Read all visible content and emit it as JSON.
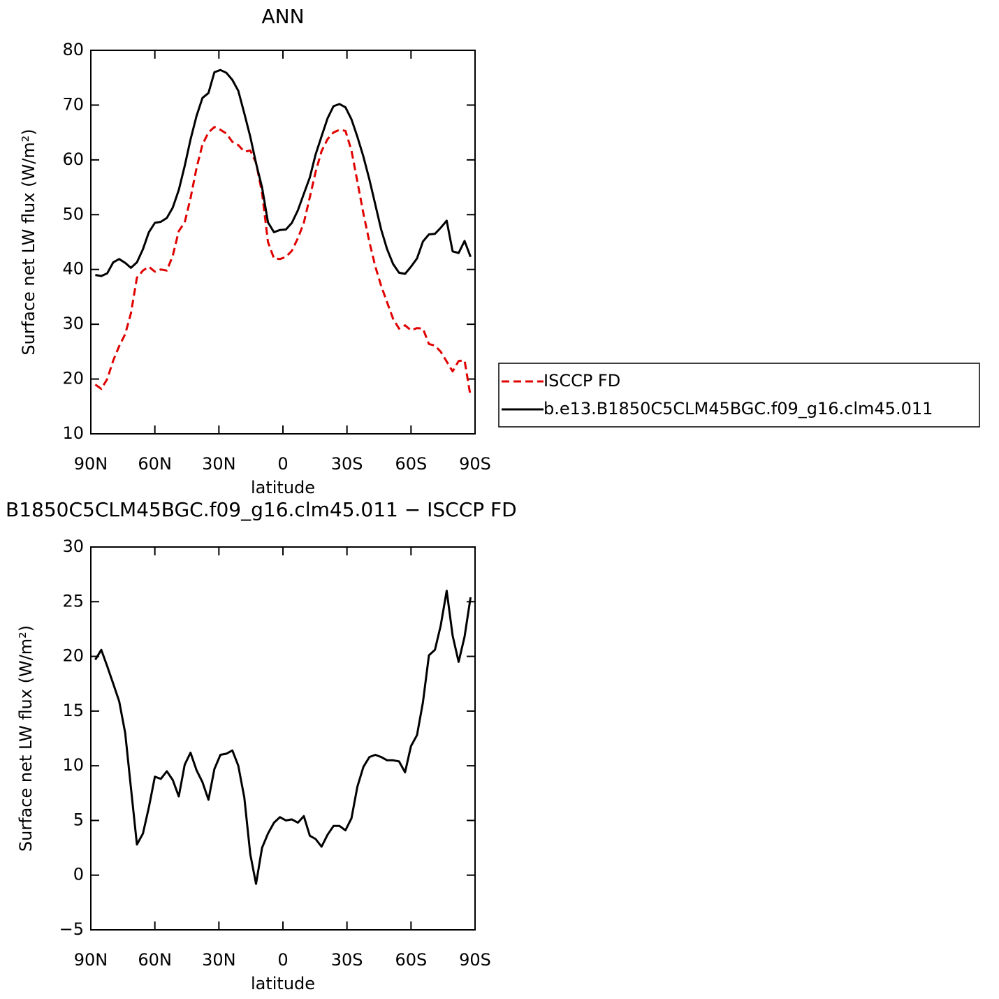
{
  "chart_data": [
    {
      "type": "line",
      "title": "ANN",
      "x_label": "latitude",
      "y_label": "Surface net LW flux (W/m²)",
      "x": [
        87.9,
        85.1,
        82.3,
        79.5,
        76.7,
        73.9,
        71.2,
        68.4,
        65.6,
        62.8,
        60.0,
        57.2,
        54.4,
        51.6,
        48.8,
        46.0,
        43.3,
        40.5,
        37.7,
        34.9,
        32.1,
        29.3,
        26.5,
        23.7,
        20.9,
        18.1,
        15.3,
        12.6,
        9.8,
        7.0,
        4.2,
        1.4,
        -1.4,
        -4.2,
        -7.0,
        -9.8,
        -12.6,
        -15.3,
        -18.1,
        -20.9,
        -23.7,
        -26.5,
        -29.3,
        -32.1,
        -34.9,
        -37.7,
        -40.5,
        -43.3,
        -46.0,
        -48.8,
        -51.6,
        -54.4,
        -57.2,
        -60.0,
        -62.8,
        -65.6,
        -68.4,
        -71.2,
        -73.9,
        -76.7,
        -79.5,
        -82.3,
        -85.1,
        -87.9
      ],
      "series": [
        {
          "name": "ISCCP FD",
          "color": "#e00000",
          "dashed": true,
          "values": [
            19.0,
            18.2,
            20.0,
            23.4,
            26.0,
            28.2,
            32.0,
            38.5,
            39.8,
            40.5,
            39.6,
            40.0,
            39.8,
            42.5,
            47.0,
            48.6,
            53.0,
            58.5,
            62.8,
            65.0,
            66.0,
            65.5,
            64.8,
            63.3,
            62.7,
            61.5,
            61.7,
            59.5,
            54.0,
            45.0,
            42.0,
            41.9,
            42.3,
            43.4,
            45.7,
            48.5,
            53.2,
            57.8,
            61.6,
            63.8,
            65.0,
            65.5,
            65.3,
            61.7,
            56.0,
            50.2,
            45.0,
            40.5,
            37.0,
            34.0,
            31.0,
            29.2,
            29.8,
            28.9,
            29.3,
            29.2,
            26.4,
            26.1,
            25.0,
            23.2,
            21.4,
            23.3,
            23.4,
            16.8
          ]
        },
        {
          "name": "b.e13.B1850C5CLM45BGC.f09_g16.clm45.011",
          "color": "#000000",
          "dashed": false,
          "values": [
            39.0,
            38.8,
            39.3,
            41.3,
            41.9,
            41.2,
            40.3,
            41.3,
            43.7,
            46.8,
            48.5,
            48.7,
            49.4,
            51.3,
            54.5,
            58.9,
            63.7,
            68.0,
            71.3,
            72.2,
            76.0,
            76.4,
            75.9,
            74.6,
            72.6,
            68.5,
            64.2,
            59.4,
            55.0,
            48.6,
            46.8,
            47.2,
            47.3,
            48.5,
            50.8,
            53.8,
            56.8,
            61.0,
            64.3,
            67.6,
            69.8,
            70.2,
            69.6,
            67.4,
            64.2,
            60.6,
            56.4,
            51.8,
            47.3,
            43.7,
            41.0,
            39.4,
            39.2,
            40.5,
            42.0,
            45.1,
            46.4,
            46.5,
            47.6,
            48.9,
            43.3,
            43.0,
            45.2,
            42.3
          ]
        }
      ],
      "xlim": [
        90,
        -90
      ],
      "xticks": [
        {
          "value": 90,
          "label": "90N"
        },
        {
          "value": 60,
          "label": "60N"
        },
        {
          "value": 30,
          "label": "30N"
        },
        0,
        {
          "value": -30,
          "label": "30S"
        },
        {
          "value": -60,
          "label": "60S"
        },
        {
          "value": -90,
          "label": "90S"
        }
      ],
      "ylim": [
        10,
        80
      ],
      "yticks": [
        10,
        20,
        30,
        40,
        50,
        60,
        70,
        80
      ],
      "legend": "right"
    },
    {
      "type": "line",
      "title": "B1850C5CLM45BGC.f09_g16.clm45.011 − ISCCP FD",
      "x_label": "latitude",
      "y_label": "Surface net LW flux (W/m²)",
      "x": [
        87.9,
        85.1,
        82.3,
        79.5,
        76.7,
        73.9,
        71.2,
        68.4,
        65.6,
        62.8,
        60.0,
        57.2,
        54.4,
        51.6,
        48.8,
        46.0,
        43.3,
        40.5,
        37.7,
        34.9,
        32.1,
        29.3,
        26.5,
        23.7,
        20.9,
        18.1,
        15.3,
        12.6,
        9.8,
        7.0,
        4.2,
        1.4,
        -1.4,
        -4.2,
        -7.0,
        -9.8,
        -12.6,
        -15.3,
        -18.1,
        -20.9,
        -23.7,
        -26.5,
        -29.3,
        -32.1,
        -34.9,
        -37.7,
        -40.5,
        -43.3,
        -46.0,
        -48.8,
        -51.6,
        -54.4,
        -57.2,
        -60.0,
        -62.8,
        -65.6,
        -68.4,
        -71.2,
        -73.9,
        -76.7,
        -79.5,
        -82.3,
        -85.1,
        -87.9
      ],
      "values": [
        19.7,
        20.6,
        19.1,
        17.5,
        15.9,
        13.0,
        8.0,
        2.8,
        3.8,
        6.2,
        9.0,
        8.8,
        9.5,
        8.7,
        7.2,
        10.1,
        11.2,
        9.6,
        8.5,
        6.9,
        9.7,
        11.0,
        11.1,
        11.4,
        10.0,
        7.1,
        1.9,
        -0.8,
        2.5,
        3.8,
        4.8,
        5.3,
        5.0,
        5.1,
        4.8,
        5.4,
        3.6,
        3.3,
        2.6,
        3.7,
        4.5,
        4.5,
        4.1,
        5.2,
        8.1,
        9.9,
        10.8,
        11.0,
        10.8,
        10.5,
        10.5,
        10.4,
        9.4,
        11.8,
        12.8,
        15.8,
        20.1,
        20.6,
        22.8,
        26.0,
        21.9,
        19.5,
        21.8,
        25.4
      ],
      "color": "#000000",
      "xlim": [
        90,
        -90
      ],
      "xticks": [
        {
          "value": 90,
          "label": "90N"
        },
        {
          "value": 60,
          "label": "60N"
        },
        {
          "value": 30,
          "label": "30N"
        },
        0,
        {
          "value": -30,
          "label": "30S"
        },
        {
          "value": -60,
          "label": "60S"
        },
        {
          "value": -90,
          "label": "90S"
        }
      ],
      "ylim": [
        -5,
        30
      ],
      "yticks": [
        {
          "value": -5,
          "label": "−5"
        },
        0,
        5,
        10,
        15,
        20,
        25,
        30
      ]
    }
  ]
}
